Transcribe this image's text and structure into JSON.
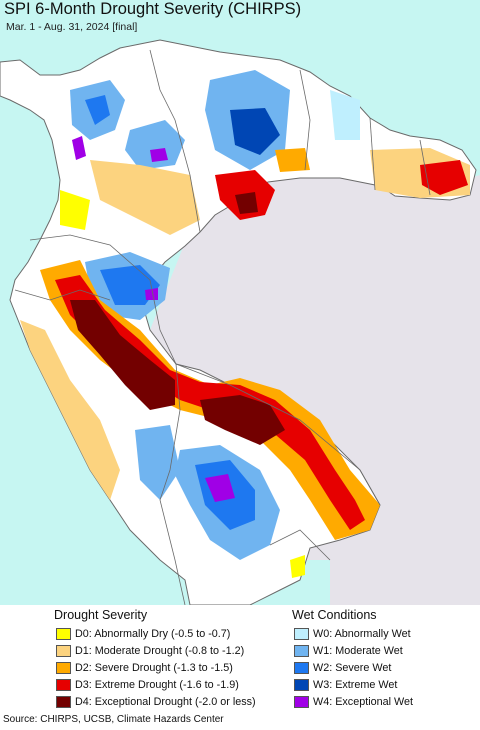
{
  "header": {
    "title": "SPI 6-Month Drought Severity (CHIRPS)",
    "subtitle": "Mar. 1 - Aug. 31, 2024 [final]"
  },
  "legend": {
    "drought_title": "Drought Severity",
    "wet_title": "Wet Conditions",
    "drought_items": [
      {
        "label": "D0: Abnormally Dry (-0.5 to -0.7)",
        "color": "#ffff00"
      },
      {
        "label": "D1: Moderate Drought (-0.8 to -1.2)",
        "color": "#fcd37f"
      },
      {
        "label": "D2: Severe Drought (-1.3 to -1.5)",
        "color": "#ffaa00"
      },
      {
        "label": "D3: Extreme Drought (-1.6 to -1.9)",
        "color": "#e60000"
      },
      {
        "label": "D4: Exceptional Drought (-2.0 or less)",
        "color": "#730000"
      }
    ],
    "wet_items": [
      {
        "label": "W0: Abnormally Wet",
        "color": "#bfeffe"
      },
      {
        "label": "W1: Moderate Wet",
        "color": "#70b4f0"
      },
      {
        "label": "W2: Severe Wet",
        "color": "#1e78f0"
      },
      {
        "label": "W3: Extreme Wet",
        "color": "#0046b4"
      },
      {
        "label": "W4: Exceptional Wet",
        "color": "#a000e6"
      }
    ]
  },
  "source": "Source: CHIRPS, UCSB, Climate Hazards Center",
  "map": {
    "ocean_color": "#c6f6f2",
    "land_color": "#ffffff",
    "outside_color": "#e6e3ea",
    "border_color": "#6a6a6a"
  }
}
